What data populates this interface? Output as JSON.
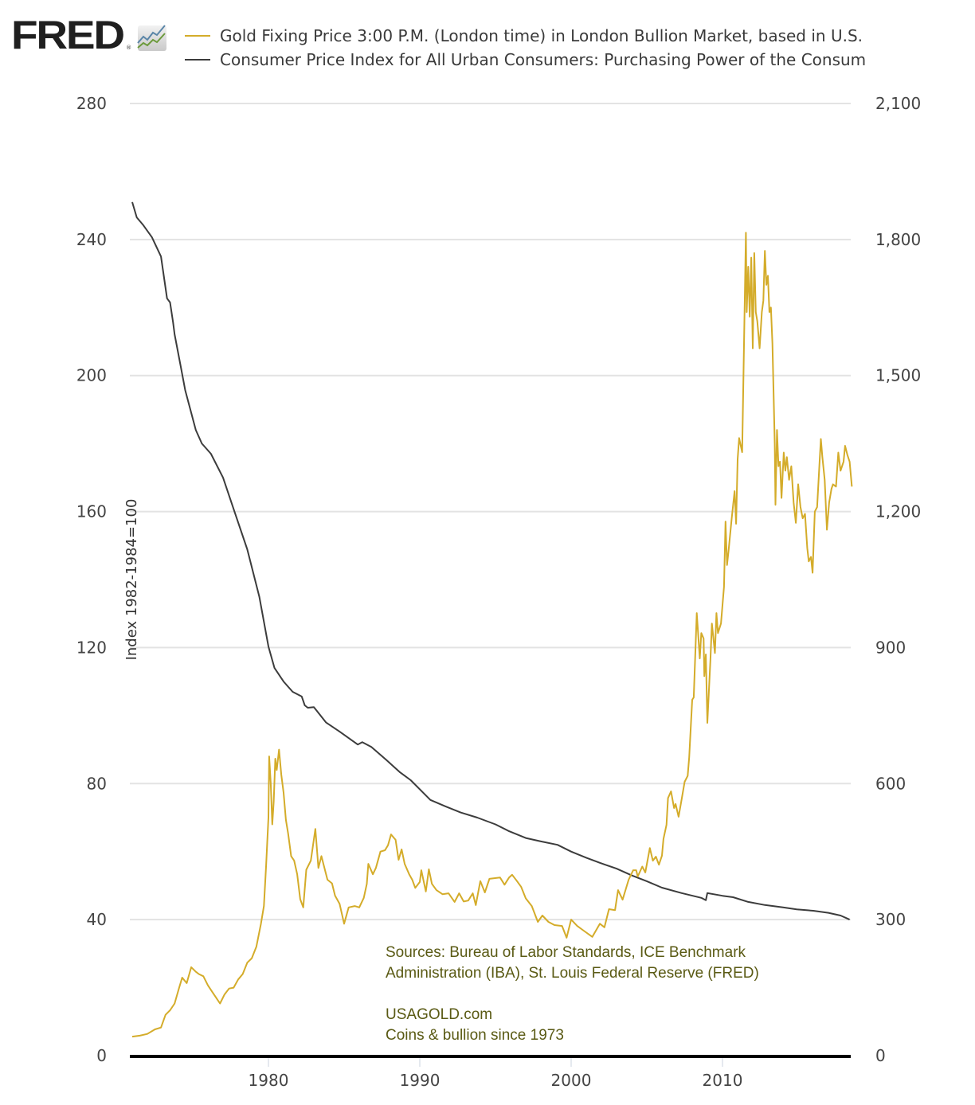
{
  "branding": {
    "logo_text": "FRED",
    "logo_registered": "®",
    "logo_icon": "fred-chart-icon"
  },
  "chart_data": {
    "type": "line",
    "title": "",
    "legend_position": "top",
    "legend": [
      {
        "name": "Gold Fixing Price 3:00 P.M. (London time) in London Bullion Market, based in U.S.",
        "color": "#d4ac2a",
        "axis": "right"
      },
      {
        "name": "Consumer Price Index for All Urban Consumers: Purchasing Power of the Consum",
        "color": "#3c3c3c",
        "axis": "left"
      }
    ],
    "xlabel": "",
    "x_ticks": [
      1980,
      1990,
      2000,
      2010
    ],
    "x_range": [
      1971.0,
      2018.6
    ],
    "ylabel_left": "Index 1982-1984=100",
    "ylim_left": [
      0,
      280
    ],
    "y_ticks_left": [
      0,
      40,
      80,
      120,
      160,
      200,
      240,
      280
    ],
    "y_tick_labels_left": [
      "0",
      "40",
      "80",
      "120",
      "160",
      "200",
      "240",
      "280"
    ],
    "ylabel_right": "",
    "ylim_right": [
      0,
      2100
    ],
    "y_ticks_right": [
      0,
      300,
      600,
      900,
      1200,
      1500,
      1800,
      2100
    ],
    "y_tick_labels_right": [
      "0",
      "300",
      "600",
      "900",
      "1,200",
      "1,500",
      "1,800",
      "2,100"
    ],
    "grid": true,
    "series": [
      {
        "name": "Gold Fixing Price (USD/oz)",
        "axis": "right",
        "color": "#d4ac2a",
        "points": [
          [
            1971.0,
            42
          ],
          [
            1971.5,
            44
          ],
          [
            1972.0,
            48
          ],
          [
            1972.5,
            58
          ],
          [
            1972.9,
            62
          ],
          [
            1973.2,
            90
          ],
          [
            1973.5,
            100
          ],
          [
            1973.8,
            115
          ],
          [
            1974.1,
            150
          ],
          [
            1974.3,
            172
          ],
          [
            1974.6,
            160
          ],
          [
            1974.9,
            195
          ],
          [
            1975.2,
            185
          ],
          [
            1975.4,
            180
          ],
          [
            1975.7,
            175
          ],
          [
            1976.0,
            155
          ],
          [
            1976.3,
            140
          ],
          [
            1976.6,
            125
          ],
          [
            1976.8,
            115
          ],
          [
            1977.1,
            135
          ],
          [
            1977.4,
            148
          ],
          [
            1977.7,
            150
          ],
          [
            1978.0,
            168
          ],
          [
            1978.3,
            180
          ],
          [
            1978.6,
            205
          ],
          [
            1978.9,
            215
          ],
          [
            1979.2,
            240
          ],
          [
            1979.5,
            290
          ],
          [
            1979.7,
            330
          ],
          [
            1979.85,
            420
          ],
          [
            1980.0,
            525
          ],
          [
            1980.05,
            660
          ],
          [
            1980.15,
            600
          ],
          [
            1980.25,
            510
          ],
          [
            1980.35,
            560
          ],
          [
            1980.45,
            655
          ],
          [
            1980.55,
            630
          ],
          [
            1980.7,
            675
          ],
          [
            1980.85,
            620
          ],
          [
            1981.0,
            580
          ],
          [
            1981.15,
            520
          ],
          [
            1981.3,
            490
          ],
          [
            1981.5,
            440
          ],
          [
            1981.7,
            430
          ],
          [
            1981.9,
            400
          ],
          [
            1982.1,
            345
          ],
          [
            1982.3,
            327
          ],
          [
            1982.5,
            410
          ],
          [
            1982.8,
            430
          ],
          [
            1983.1,
            500
          ],
          [
            1983.3,
            414
          ],
          [
            1983.5,
            440
          ],
          [
            1983.7,
            414
          ],
          [
            1983.9,
            388
          ],
          [
            1984.2,
            380
          ],
          [
            1984.4,
            353
          ],
          [
            1984.7,
            335
          ],
          [
            1985.0,
            291
          ],
          [
            1985.3,
            327
          ],
          [
            1985.7,
            330
          ],
          [
            1986.0,
            327
          ],
          [
            1986.3,
            348
          ],
          [
            1986.5,
            379
          ],
          [
            1986.6,
            423
          ],
          [
            1986.9,
            400
          ],
          [
            1987.1,
            414
          ],
          [
            1987.4,
            450
          ],
          [
            1987.7,
            453
          ],
          [
            1987.9,
            464
          ],
          [
            1988.1,
            488
          ],
          [
            1988.4,
            476
          ],
          [
            1988.6,
            432
          ],
          [
            1988.8,
            455
          ],
          [
            1989.0,
            423
          ],
          [
            1989.3,
            400
          ],
          [
            1989.5,
            388
          ],
          [
            1989.7,
            370
          ],
          [
            1990.0,
            383
          ],
          [
            1990.1,
            409
          ],
          [
            1990.4,
            362
          ],
          [
            1990.6,
            411
          ],
          [
            1990.8,
            379
          ],
          [
            1991.1,
            365
          ],
          [
            1991.5,
            356
          ],
          [
            1991.9,
            358
          ],
          [
            1992.3,
            339
          ],
          [
            1992.6,
            358
          ],
          [
            1992.9,
            340
          ],
          [
            1993.2,
            342
          ],
          [
            1993.5,
            358
          ],
          [
            1993.7,
            332
          ],
          [
            1994.0,
            385
          ],
          [
            1994.3,
            360
          ],
          [
            1994.6,
            390
          ],
          [
            1995.3,
            393
          ],
          [
            1995.6,
            377
          ],
          [
            1995.9,
            393
          ],
          [
            1996.1,
            399
          ],
          [
            1996.4,
            386
          ],
          [
            1996.7,
            372
          ],
          [
            1997.0,
            347
          ],
          [
            1997.4,
            330
          ],
          [
            1997.8,
            295
          ],
          [
            1998.1,
            309
          ],
          [
            1998.5,
            295
          ],
          [
            1998.9,
            288
          ],
          [
            1999.4,
            286
          ],
          [
            1999.7,
            260
          ],
          [
            2000.0,
            300
          ],
          [
            2000.4,
            286
          ],
          [
            2000.9,
            274
          ],
          [
            2001.4,
            262
          ],
          [
            2001.9,
            291
          ],
          [
            2002.2,
            283
          ],
          [
            2002.5,
            323
          ],
          [
            2002.9,
            321
          ],
          [
            2003.1,
            365
          ],
          [
            2003.4,
            344
          ],
          [
            2003.8,
            388
          ],
          [
            2004.1,
            409
          ],
          [
            2004.3,
            409
          ],
          [
            2004.4,
            395
          ],
          [
            2004.7,
            417
          ],
          [
            2004.9,
            404
          ],
          [
            2005.2,
            458
          ],
          [
            2005.4,
            430
          ],
          [
            2005.6,
            439
          ],
          [
            2005.8,
            421
          ],
          [
            2006.0,
            441
          ],
          [
            2006.1,
            478
          ],
          [
            2006.3,
            509
          ],
          [
            2006.4,
            568
          ],
          [
            2006.6,
            583
          ],
          [
            2006.8,
            546
          ],
          [
            2006.9,
            555
          ],
          [
            2007.1,
            527
          ],
          [
            2007.3,
            565
          ],
          [
            2007.5,
            604
          ],
          [
            2007.7,
            617
          ],
          [
            2007.8,
            658
          ],
          [
            2008.0,
            785
          ],
          [
            2008.1,
            790
          ],
          [
            2008.3,
            976
          ],
          [
            2008.5,
            876
          ],
          [
            2008.6,
            932
          ],
          [
            2008.75,
            920
          ],
          [
            2008.8,
            837
          ],
          [
            2008.9,
            885
          ],
          [
            2009.0,
            734
          ],
          [
            2009.2,
            871
          ],
          [
            2009.3,
            953
          ],
          [
            2009.5,
            888
          ],
          [
            2009.6,
            976
          ],
          [
            2009.7,
            932
          ],
          [
            2009.9,
            953
          ],
          [
            2010.1,
            1034
          ],
          [
            2010.2,
            1178
          ],
          [
            2010.3,
            1082
          ],
          [
            2010.4,
            1113
          ],
          [
            2010.6,
            1182
          ],
          [
            2010.8,
            1245
          ],
          [
            2010.9,
            1173
          ],
          [
            2011.0,
            1315
          ],
          [
            2011.1,
            1362
          ],
          [
            2011.3,
            1331
          ],
          [
            2011.55,
            1815
          ],
          [
            2011.6,
            1640
          ],
          [
            2011.7,
            1740
          ],
          [
            2011.8,
            1630
          ],
          [
            2011.9,
            1760
          ],
          [
            2012.0,
            1560
          ],
          [
            2012.1,
            1770
          ],
          [
            2012.2,
            1640
          ],
          [
            2012.3,
            1620
          ],
          [
            2012.45,
            1560
          ],
          [
            2012.6,
            1640
          ],
          [
            2012.7,
            1665
          ],
          [
            2012.8,
            1775
          ],
          [
            2012.9,
            1700
          ],
          [
            2013.0,
            1720
          ],
          [
            2013.1,
            1640
          ],
          [
            2013.2,
            1650
          ],
          [
            2013.3,
            1570
          ],
          [
            2013.45,
            1350
          ],
          [
            2013.5,
            1215
          ],
          [
            2013.6,
            1380
          ],
          [
            2013.7,
            1300
          ],
          [
            2013.8,
            1310
          ],
          [
            2013.9,
            1230
          ],
          [
            2014.05,
            1330
          ],
          [
            2014.15,
            1290
          ],
          [
            2014.25,
            1320
          ],
          [
            2014.4,
            1270
          ],
          [
            2014.55,
            1300
          ],
          [
            2014.7,
            1220
          ],
          [
            2014.85,
            1175
          ],
          [
            2015.0,
            1260
          ],
          [
            2015.15,
            1210
          ],
          [
            2015.3,
            1185
          ],
          [
            2015.45,
            1195
          ],
          [
            2015.6,
            1120
          ],
          [
            2015.7,
            1090
          ],
          [
            2015.85,
            1100
          ],
          [
            2015.95,
            1065
          ],
          [
            2016.1,
            1200
          ],
          [
            2016.25,
            1210
          ],
          [
            2016.4,
            1300
          ],
          [
            2016.5,
            1360
          ],
          [
            2016.6,
            1320
          ],
          [
            2016.75,
            1270
          ],
          [
            2016.9,
            1160
          ],
          [
            2017.05,
            1220
          ],
          [
            2017.2,
            1250
          ],
          [
            2017.3,
            1260
          ],
          [
            2017.5,
            1255
          ],
          [
            2017.65,
            1330
          ],
          [
            2017.8,
            1290
          ],
          [
            2018.0,
            1310
          ],
          [
            2018.1,
            1345
          ],
          [
            2018.25,
            1325
          ],
          [
            2018.4,
            1310
          ],
          [
            2018.55,
            1255
          ]
        ]
      },
      {
        "name": "CPI-U Purchasing Power of the Consumer Dollar (Index 1982-1984=100)",
        "axis": "left",
        "color": "#3c3c3c",
        "points": [
          [
            1971.0,
            251.0
          ],
          [
            1971.3,
            246.5
          ],
          [
            1971.7,
            244.4
          ],
          [
            1972.3,
            240.7
          ],
          [
            1972.9,
            235.0
          ],
          [
            1973.3,
            222.7
          ],
          [
            1973.5,
            221.5
          ],
          [
            1973.7,
            215.6
          ],
          [
            1973.8,
            212.1
          ],
          [
            1974.2,
            202.8
          ],
          [
            1974.5,
            195.7
          ],
          [
            1975.2,
            184.0
          ],
          [
            1975.6,
            180.0
          ],
          [
            1976.2,
            177.0
          ],
          [
            1977.0,
            170.0
          ],
          [
            1977.8,
            159.4
          ],
          [
            1978.6,
            148.9
          ],
          [
            1979.4,
            134.9
          ],
          [
            1980.0,
            120.3
          ],
          [
            1980.4,
            114.0
          ],
          [
            1981.0,
            110.0
          ],
          [
            1981.6,
            107.0
          ],
          [
            1982.2,
            105.6
          ],
          [
            1982.4,
            103.0
          ],
          [
            1982.6,
            102.3
          ],
          [
            1983.0,
            102.5
          ],
          [
            1983.8,
            98.0
          ],
          [
            1984.7,
            95.3
          ],
          [
            1985.9,
            91.5
          ],
          [
            1986.2,
            92.2
          ],
          [
            1986.8,
            90.8
          ],
          [
            1987.8,
            86.9
          ],
          [
            1988.7,
            83.3
          ],
          [
            1989.4,
            81.0
          ],
          [
            1990.7,
            75.2
          ],
          [
            1991.7,
            73.3
          ],
          [
            1992.7,
            71.5
          ],
          [
            1993.8,
            70.0
          ],
          [
            1995.0,
            68.0
          ],
          [
            1995.9,
            66.0
          ],
          [
            1997.0,
            64.0
          ],
          [
            1998.0,
            63.0
          ],
          [
            1999.1,
            62.0
          ],
          [
            2000.0,
            60.0
          ],
          [
            2001.0,
            58.2
          ],
          [
            2001.9,
            56.7
          ],
          [
            2003.0,
            55.0
          ],
          [
            2004.0,
            53.0
          ],
          [
            2005.0,
            51.3
          ],
          [
            2006.0,
            49.4
          ],
          [
            2007.3,
            47.8
          ],
          [
            2008.6,
            46.4
          ],
          [
            2008.9,
            45.7
          ],
          [
            2009.0,
            47.8
          ],
          [
            2010.0,
            47.0
          ],
          [
            2010.7,
            46.6
          ],
          [
            2011.7,
            45.2
          ],
          [
            2012.8,
            44.3
          ],
          [
            2014.0,
            43.6
          ],
          [
            2014.9,
            43.0
          ],
          [
            2016.0,
            42.6
          ],
          [
            2017.0,
            42.0
          ],
          [
            2017.8,
            41.2
          ],
          [
            2018.4,
            40.0
          ]
        ]
      }
    ],
    "annotations": [
      "Sources:  Bureau of Labor Standards, ICE Benchmark",
      "Administration (IBA), St. Louis Federal Reserve (FRED)",
      "USAGOLD.com",
      "Coins & bullion since 1973"
    ]
  }
}
